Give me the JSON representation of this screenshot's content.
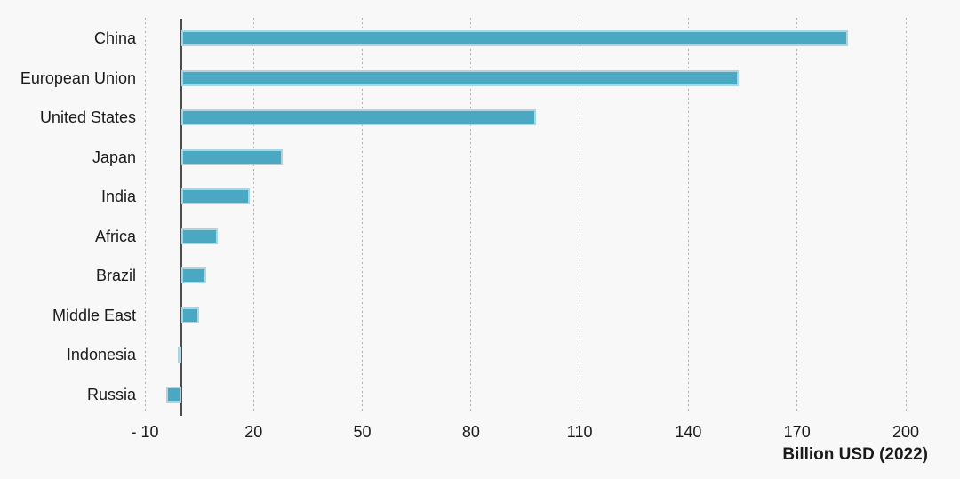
{
  "chart_data": {
    "type": "bar",
    "orientation": "horizontal",
    "title": "",
    "xlabel": "Billion USD (2022)",
    "ylabel": "",
    "categories": [
      "China",
      "European Union",
      "United States",
      "Japan",
      "India",
      "Africa",
      "Brazil",
      "Middle East",
      "Indonesia",
      "Russia"
    ],
    "values": [
      184,
      154,
      98,
      28,
      19,
      10,
      7,
      5,
      -1,
      -4
    ],
    "xlim": [
      -10,
      200
    ],
    "xticks": [
      -10,
      20,
      50,
      80,
      110,
      140,
      170,
      200
    ],
    "xtick_labels": [
      "- 10",
      "20",
      "50",
      "80",
      "110",
      "140",
      "170",
      "200"
    ],
    "grid": "vertical-dotted",
    "legend": "none",
    "colors": {
      "bar_fill": "#4aa8c2",
      "bar_edge": "#abd5e0",
      "zero_axis_line": "#4d4d4d",
      "gridline": "#aeaeae",
      "text": "#1a1a1a",
      "background": "#f8f8f8"
    }
  }
}
